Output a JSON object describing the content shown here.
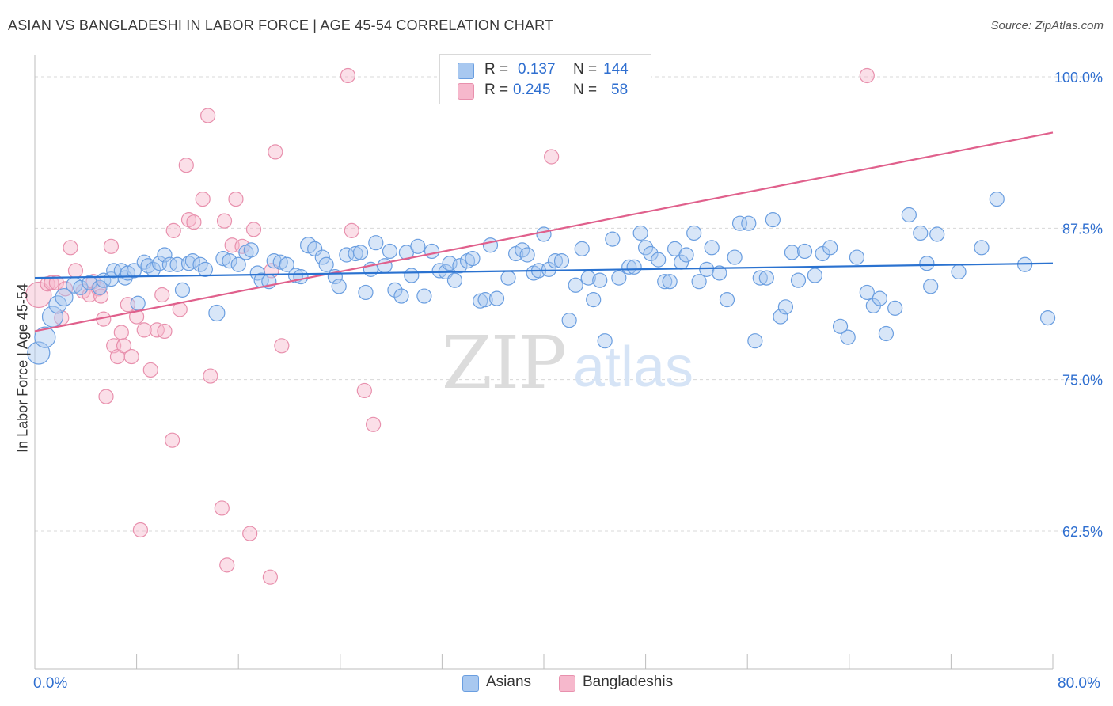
{
  "header": {
    "title": "ASIAN VS BANGLADESHI IN LABOR FORCE | AGE 45-54 CORRELATION CHART",
    "source": "Source: ZipAtlas.com"
  },
  "legend": {
    "asians": {
      "r_label": "R =",
      "r_value": "0.137",
      "n_label": "N =",
      "n_value": "144"
    },
    "bangladeshis": {
      "r_label": "R =",
      "r_value": "0.245",
      "n_label": "N =",
      "n_value": "58"
    }
  },
  "bottom_legend": {
    "asians": "Asians",
    "bangladeshis": "Bangladeshis"
  },
  "colors": {
    "asian_fill": "#a8c8f0",
    "asian_stroke": "#6a9ee0",
    "asian_line": "#2a72d0",
    "bang_fill": "#f6b8cc",
    "bang_stroke": "#e890ad",
    "bang_line": "#e0608c",
    "grid": "#d8d8d8",
    "tick_label": "#2f6fd0"
  },
  "watermark": {
    "zip": "ZIP",
    "atlas": "atlas"
  },
  "chart_data": {
    "type": "scatter",
    "title": "ASIAN VS BANGLADESHI IN LABOR FORCE | AGE 45-54 CORRELATION CHART",
    "xlabel": "",
    "ylabel": "In Labor Force | Age 45-54",
    "xlim": [
      0,
      80
    ],
    "ylim": [
      50,
      101.5
    ],
    "x_tick_labels": [
      "0.0%",
      "80.0%"
    ],
    "y_ticks": [
      62.5,
      75.0,
      87.5,
      100.0
    ],
    "y_tick_labels": [
      "62.5%",
      "75.0%",
      "87.5%",
      "100.0%"
    ],
    "grid": "horizontal dashed",
    "legend_position": "top-center",
    "series": [
      {
        "name": "Asians",
        "trend": {
          "x": [
            0,
            80
          ],
          "y": [
            83.4,
            84.6
          ]
        },
        "points": [
          [
            0.3,
            77.2,
            14
          ],
          [
            0.8,
            78.5,
            13
          ],
          [
            1.4,
            80.2,
            13
          ],
          [
            1.8,
            81.2,
            11
          ],
          [
            2.3,
            81.8,
            11
          ],
          [
            3.1,
            82.8,
            10
          ],
          [
            3.6,
            82.6,
            9
          ],
          [
            4.3,
            83.0,
            9
          ],
          [
            5.1,
            82.6,
            9
          ],
          [
            5.4,
            83.2,
            9
          ],
          [
            6.0,
            83.3,
            9
          ],
          [
            6.2,
            84.0,
            9
          ],
          [
            6.8,
            84.0,
            9
          ],
          [
            7.1,
            83.4,
            9
          ],
          [
            7.3,
            83.8,
            9
          ],
          [
            7.8,
            84.0,
            9
          ],
          [
            8.1,
            81.3,
            9
          ],
          [
            8.6,
            84.7,
            9
          ],
          [
            8.9,
            84.4,
            9
          ],
          [
            9.3,
            84.1,
            9
          ],
          [
            9.8,
            84.6,
            9
          ],
          [
            10.2,
            85.3,
            9
          ],
          [
            10.6,
            84.5,
            9
          ],
          [
            11.2,
            84.5,
            9
          ],
          [
            11.6,
            82.4,
            9
          ],
          [
            12.1,
            84.6,
            9
          ],
          [
            12.4,
            84.8,
            9
          ],
          [
            13.0,
            84.5,
            9
          ],
          [
            13.4,
            84.1,
            9
          ],
          [
            14.3,
            80.5,
            10
          ],
          [
            14.8,
            85.0,
            9
          ],
          [
            15.3,
            84.8,
            9
          ],
          [
            16.0,
            84.5,
            9
          ],
          [
            16.6,
            85.5,
            9
          ],
          [
            17.0,
            85.7,
            9
          ],
          [
            17.5,
            83.8,
            9
          ],
          [
            17.8,
            83.2,
            9
          ],
          [
            18.4,
            83.1,
            9
          ],
          [
            18.8,
            84.8,
            9
          ],
          [
            19.3,
            84.7,
            9
          ],
          [
            19.8,
            84.5,
            9
          ],
          [
            20.5,
            83.6,
            9
          ],
          [
            20.9,
            83.5,
            9
          ],
          [
            21.5,
            86.1,
            10
          ],
          [
            22.0,
            85.8,
            9
          ],
          [
            22.6,
            85.1,
            9
          ],
          [
            22.9,
            84.5,
            9
          ],
          [
            23.6,
            83.5,
            9
          ],
          [
            23.9,
            82.7,
            9
          ],
          [
            24.5,
            85.3,
            9
          ],
          [
            25.2,
            85.4,
            9
          ],
          [
            25.6,
            85.5,
            9
          ],
          [
            26.0,
            82.2,
            9
          ],
          [
            26.4,
            84.1,
            9
          ],
          [
            26.8,
            86.3,
            9
          ],
          [
            27.5,
            84.4,
            9
          ],
          [
            27.9,
            85.6,
            9
          ],
          [
            28.3,
            82.4,
            9
          ],
          [
            28.8,
            81.9,
            9
          ],
          [
            29.2,
            85.5,
            9
          ],
          [
            29.6,
            83.6,
            9
          ],
          [
            30.1,
            86.0,
            9
          ],
          [
            30.6,
            81.9,
            9
          ],
          [
            31.2,
            85.6,
            9
          ],
          [
            31.8,
            84.0,
            9
          ],
          [
            32.3,
            83.9,
            9
          ],
          [
            32.6,
            84.6,
            9
          ],
          [
            33.0,
            83.2,
            9
          ],
          [
            33.4,
            84.4,
            9
          ],
          [
            34.0,
            84.8,
            9
          ],
          [
            34.4,
            85.0,
            9
          ],
          [
            35.0,
            81.5,
            9
          ],
          [
            35.4,
            81.6,
            9
          ],
          [
            35.8,
            86.1,
            9
          ],
          [
            36.3,
            81.7,
            9
          ],
          [
            37.2,
            83.4,
            9
          ],
          [
            37.8,
            85.4,
            9
          ],
          [
            38.3,
            85.7,
            9
          ],
          [
            38.7,
            85.3,
            9
          ],
          [
            39.2,
            83.8,
            9
          ],
          [
            39.6,
            84.0,
            9
          ],
          [
            40.0,
            87.0,
            9
          ],
          [
            40.4,
            84.1,
            9
          ],
          [
            40.9,
            84.8,
            9
          ],
          [
            41.4,
            84.8,
            9
          ],
          [
            42.0,
            79.9,
            9
          ],
          [
            42.5,
            82.8,
            9
          ],
          [
            43.0,
            85.8,
            9
          ],
          [
            43.5,
            83.4,
            9
          ],
          [
            43.9,
            81.6,
            9
          ],
          [
            44.4,
            83.2,
            9
          ],
          [
            44.8,
            78.2,
            9
          ],
          [
            45.4,
            86.6,
            9
          ],
          [
            45.9,
            83.4,
            9
          ],
          [
            46.7,
            84.3,
            9
          ],
          [
            47.1,
            84.3,
            9
          ],
          [
            47.6,
            87.1,
            9
          ],
          [
            48.0,
            85.9,
            9
          ],
          [
            48.4,
            85.4,
            9
          ],
          [
            49.0,
            84.9,
            9
          ],
          [
            49.5,
            83.1,
            9
          ],
          [
            49.9,
            83.1,
            9
          ],
          [
            50.3,
            85.8,
            9
          ],
          [
            50.8,
            84.7,
            9
          ],
          [
            51.2,
            85.3,
            9
          ],
          [
            51.8,
            87.1,
            9
          ],
          [
            52.2,
            83.1,
            9
          ],
          [
            52.8,
            84.1,
            9
          ],
          [
            53.2,
            85.9,
            9
          ],
          [
            53.8,
            83.8,
            9
          ],
          [
            54.4,
            81.6,
            9
          ],
          [
            55.0,
            85.1,
            9
          ],
          [
            55.4,
            87.9,
            9
          ],
          [
            56.1,
            87.9,
            9
          ],
          [
            56.6,
            78.2,
            9
          ],
          [
            57.0,
            83.4,
            9
          ],
          [
            57.5,
            83.4,
            9
          ],
          [
            58.0,
            88.2,
            9
          ],
          [
            58.6,
            80.2,
            9
          ],
          [
            59.0,
            81.0,
            9
          ],
          [
            59.5,
            85.5,
            9
          ],
          [
            60.0,
            83.2,
            9
          ],
          [
            60.5,
            85.6,
            9
          ],
          [
            61.3,
            83.6,
            9
          ],
          [
            61.9,
            85.4,
            9
          ],
          [
            62.5,
            85.9,
            9
          ],
          [
            63.3,
            79.4,
            9
          ],
          [
            63.9,
            78.5,
            9
          ],
          [
            64.6,
            85.1,
            9
          ],
          [
            65.4,
            82.2,
            9
          ],
          [
            65.9,
            81.1,
            9
          ],
          [
            66.4,
            81.7,
            9
          ],
          [
            66.9,
            78.8,
            9
          ],
          [
            67.6,
            80.9,
            9
          ],
          [
            68.7,
            88.6,
            9
          ],
          [
            69.6,
            87.1,
            9
          ],
          [
            70.1,
            84.6,
            9
          ],
          [
            70.4,
            82.7,
            9
          ],
          [
            70.9,
            87.0,
            9
          ],
          [
            72.6,
            83.9,
            9
          ],
          [
            74.4,
            85.9,
            9
          ],
          [
            75.6,
            89.9,
            9
          ],
          [
            77.8,
            84.5,
            9
          ],
          [
            79.6,
            80.1,
            9
          ]
        ]
      },
      {
        "name": "Bangladeshis",
        "trend": {
          "x": [
            0,
            80
          ],
          "y": [
            79.0,
            95.4
          ]
        },
        "points": [
          [
            0.3,
            82.0,
            16
          ],
          [
            1.0,
            82.9,
            9
          ],
          [
            1.3,
            83.0,
            9
          ],
          [
            1.7,
            83.0,
            9
          ],
          [
            2.1,
            80.1,
            9
          ],
          [
            2.4,
            82.5,
            9
          ],
          [
            2.8,
            85.9,
            9
          ],
          [
            3.2,
            84.0,
            9
          ],
          [
            3.8,
            82.3,
            9
          ],
          [
            4.3,
            82.0,
            9
          ],
          [
            4.6,
            83.1,
            9
          ],
          [
            5.0,
            82.5,
            9
          ],
          [
            5.2,
            81.9,
            9
          ],
          [
            5.4,
            80.0,
            9
          ],
          [
            5.6,
            73.6,
            9
          ],
          [
            6.0,
            86.0,
            9
          ],
          [
            6.2,
            77.8,
            9
          ],
          [
            6.5,
            76.9,
            9
          ],
          [
            6.8,
            78.9,
            9
          ],
          [
            7.0,
            77.8,
            9
          ],
          [
            7.3,
            81.2,
            9
          ],
          [
            7.6,
            76.9,
            9
          ],
          [
            8.0,
            80.2,
            9
          ],
          [
            8.3,
            62.6,
            9
          ],
          [
            8.6,
            79.1,
            9
          ],
          [
            9.1,
            75.8,
            9
          ],
          [
            9.6,
            79.1,
            9
          ],
          [
            10.0,
            82.0,
            9
          ],
          [
            10.2,
            79.0,
            9
          ],
          [
            10.8,
            70.0,
            9
          ],
          [
            10.9,
            87.3,
            9
          ],
          [
            11.4,
            80.8,
            9
          ],
          [
            11.9,
            92.7,
            9
          ],
          [
            12.1,
            88.2,
            9
          ],
          [
            12.5,
            88.0,
            9
          ],
          [
            13.2,
            89.9,
            9
          ],
          [
            13.6,
            96.8,
            9
          ],
          [
            13.8,
            75.3,
            9
          ],
          [
            14.7,
            64.4,
            9
          ],
          [
            14.9,
            88.1,
            9
          ],
          [
            15.1,
            59.7,
            9
          ],
          [
            15.5,
            86.1,
            9
          ],
          [
            15.8,
            89.9,
            9
          ],
          [
            16.3,
            86.0,
            9
          ],
          [
            16.9,
            62.3,
            9
          ],
          [
            17.2,
            87.4,
            9
          ],
          [
            18.5,
            58.7,
            9
          ],
          [
            18.6,
            84.0,
            9
          ],
          [
            18.9,
            93.8,
            9
          ],
          [
            19.4,
            77.8,
            9
          ],
          [
            24.6,
            100.1,
            9
          ],
          [
            24.9,
            87.3,
            9
          ],
          [
            25.9,
            74.1,
            9
          ],
          [
            26.6,
            71.3,
            9
          ],
          [
            40.6,
            93.4,
            9
          ],
          [
            65.4,
            100.1,
            9
          ]
        ]
      }
    ]
  }
}
